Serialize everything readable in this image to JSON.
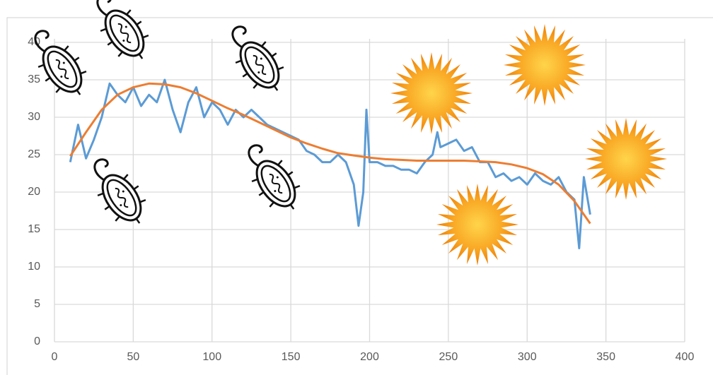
{
  "chart_data": {
    "type": "line",
    "xlim": [
      0,
      400
    ],
    "xticks": [
      0,
      50,
      100,
      150,
      200,
      250,
      300,
      350,
      400
    ],
    "ylim": [
      0,
      40
    ],
    "yticks": [
      0,
      5,
      10,
      15,
      20,
      25,
      30,
      35,
      40
    ],
    "grid": true,
    "series": [
      {
        "color": "#5b9bd5",
        "x": [
          10,
          15,
          20,
          25,
          30,
          35,
          40,
          45,
          50,
          55,
          60,
          65,
          70,
          75,
          80,
          85,
          90,
          95,
          100,
          105,
          110,
          115,
          120,
          125,
          130,
          135,
          140,
          145,
          150,
          155,
          160,
          165,
          170,
          175,
          180,
          185,
          190,
          193,
          196,
          198,
          200,
          205,
          210,
          215,
          220,
          225,
          230,
          235,
          240,
          243,
          245,
          250,
          255,
          260,
          265,
          270,
          275,
          280,
          285,
          290,
          295,
          300,
          305,
          310,
          315,
          320,
          325,
          330,
          333,
          336,
          340
        ],
        "values": [
          24,
          29,
          24.5,
          27,
          30,
          34.5,
          33,
          32,
          34,
          31.5,
          33,
          32,
          35,
          31,
          28,
          32,
          34,
          30,
          32,
          31,
          29,
          31,
          30,
          31,
          30,
          29,
          28.5,
          28,
          27.5,
          27,
          25.5,
          25,
          24,
          24,
          25,
          24,
          21,
          15.5,
          20,
          31,
          24,
          24,
          23.5,
          23.5,
          23,
          23,
          22.5,
          24,
          25,
          28,
          26,
          26.5,
          27,
          25.5,
          26,
          24,
          24,
          22,
          22.5,
          21.5,
          22,
          21,
          22.5,
          21.5,
          21,
          22,
          20,
          19,
          12.5,
          22,
          17
        ]
      },
      {
        "color": "#ed7d31",
        "x": [
          10,
          20,
          30,
          40,
          50,
          60,
          70,
          80,
          90,
          100,
          110,
          120,
          130,
          140,
          150,
          160,
          170,
          180,
          190,
          200,
          210,
          220,
          230,
          240,
          250,
          260,
          270,
          280,
          290,
          300,
          310,
          320,
          330,
          340
        ],
        "values": [
          24.8,
          28,
          31,
          33,
          34,
          34.5,
          34.4,
          34,
          33.2,
          32.2,
          31.2,
          30.3,
          29.3,
          28.3,
          27.3,
          26.5,
          25.8,
          25.2,
          24.9,
          24.6,
          24.4,
          24.3,
          24.2,
          24.2,
          24.2,
          24.2,
          24.1,
          24,
          23.7,
          23.2,
          22.4,
          21,
          18.8,
          15.8
        ]
      }
    ]
  }
}
